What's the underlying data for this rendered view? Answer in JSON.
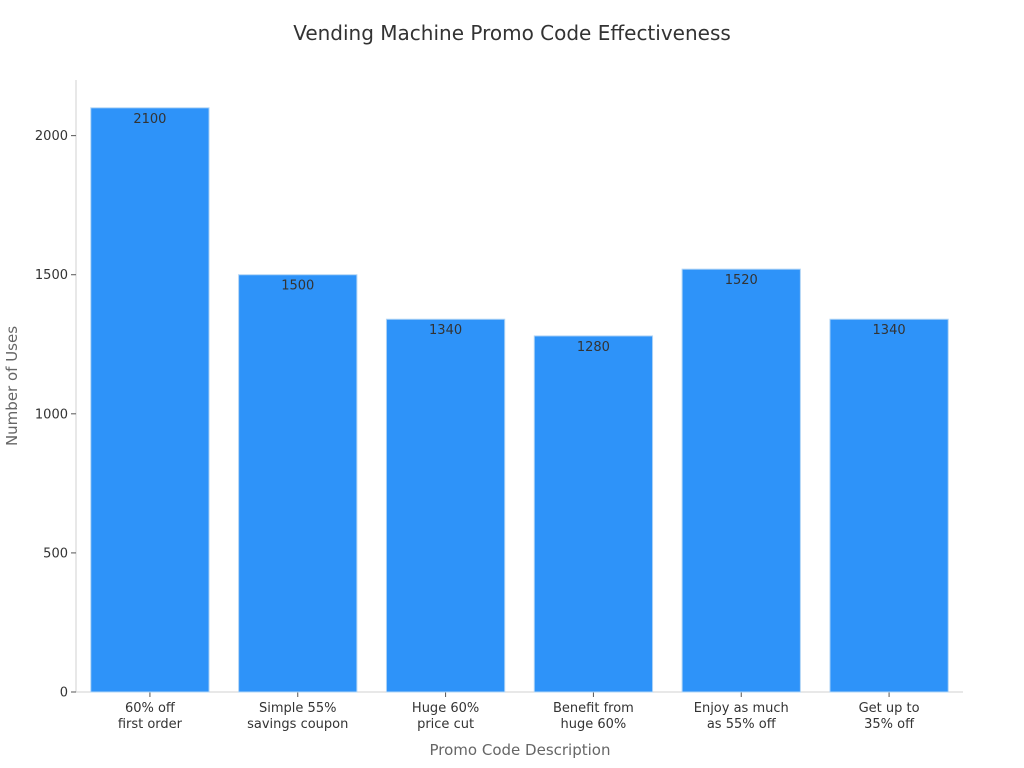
{
  "chart_data": {
    "type": "bar",
    "title": "Vending Machine Promo Code Effectiveness",
    "xlabel": "Promo Code Description",
    "ylabel": "Number of Uses",
    "categories": [
      [
        "60% off",
        "first order"
      ],
      [
        "Simple 55%",
        "savings coupon"
      ],
      [
        "Huge 60%",
        "price cut"
      ],
      [
        "Benefit from",
        "huge 60%"
      ],
      [
        "Enjoy as much",
        "as 55% off"
      ],
      [
        "Get up to",
        "35% off"
      ]
    ],
    "values": [
      2100,
      1500,
      1340,
      1280,
      1520,
      1340
    ],
    "ylim": [
      0,
      2200
    ],
    "yticks": [
      0,
      500,
      1000,
      1500,
      2000
    ],
    "grid": false,
    "legend": "none",
    "bar_color": "#2E93F9",
    "bar_edge_color": "#B0D4F5"
  }
}
